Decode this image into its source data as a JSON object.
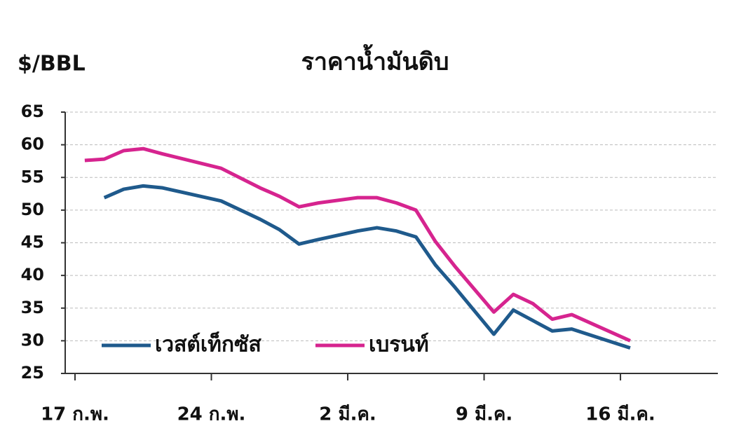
{
  "chart_data": {
    "type": "line",
    "title": "ราคาน้ำมันดิบ",
    "y_label": "$/BBL",
    "x": [
      0.5,
      1.5,
      2.5,
      3.5,
      4.5,
      7.5,
      9.5,
      10.5,
      11.5,
      12.5,
      14.5,
      15.5,
      16.5,
      17.5,
      18.5,
      19.5,
      21.5,
      22.5,
      23.5,
      24.5,
      25.5,
      28.5
    ],
    "xlim": [
      0,
      33
    ],
    "xticks": [
      {
        "value": 0,
        "label": "17 ก.พ."
      },
      {
        "value": 7,
        "label": "24 ก.พ."
      },
      {
        "value": 14,
        "label": "2 มี.ค."
      },
      {
        "value": 21,
        "label": "9 มี.ค."
      },
      {
        "value": 28,
        "label": "16 มี.ค."
      }
    ],
    "ylim": [
      25,
      65
    ],
    "yticks": [
      25,
      30,
      35,
      40,
      45,
      50,
      55,
      60,
      65
    ],
    "grid": true,
    "series": [
      {
        "name": "เวสต์เท็กซัส",
        "color": "#1f5a8c",
        "values": [
          null,
          51.9,
          53.2,
          53.7,
          53.4,
          51.4,
          48.6,
          47,
          44.8,
          45.5,
          46.8,
          47.3,
          46.8,
          45.9,
          41.6,
          38.2,
          31,
          34.7,
          33.1,
          31.5,
          31.8,
          28.9
        ]
      },
      {
        "name": "เบรนท์",
        "color": "#d6248f",
        "values": [
          57.6,
          57.8,
          59.1,
          59.4,
          58.6,
          56.4,
          53.4,
          52.1,
          50.5,
          51.1,
          51.9,
          51.9,
          51.1,
          50,
          45.2,
          41.4,
          34.4,
          37.1,
          35.7,
          33.3,
          34,
          30
        ]
      }
    ]
  }
}
